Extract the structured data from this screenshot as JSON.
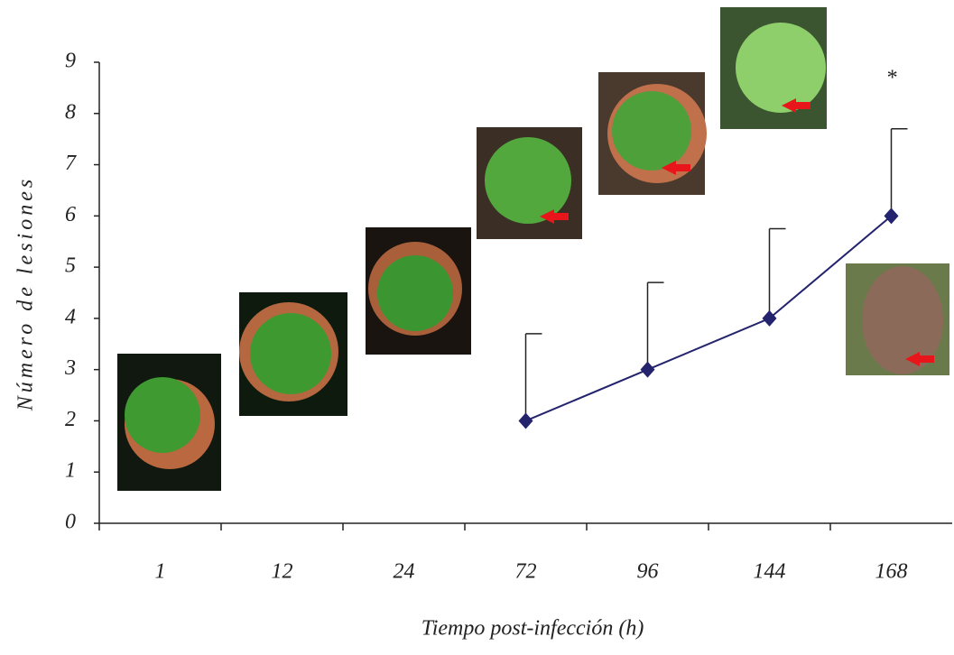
{
  "chart_data": {
    "type": "line",
    "x_label": "Tiempo post-infección (h)",
    "y_label": "Número de lesiones",
    "categories": [
      "1",
      "12",
      "24",
      "72",
      "96",
      "144",
      "168"
    ],
    "series": [
      {
        "color": "#23236e",
        "values": [
          null,
          null,
          null,
          2,
          3,
          4,
          6
        ],
        "errors": [
          null,
          null,
          null,
          1.7,
          1.7,
          1.75,
          1.7
        ]
      }
    ],
    "annotation": "*",
    "ylim": [
      0,
      9
    ],
    "yticks": [
      0,
      1,
      2,
      3,
      4,
      5,
      6,
      7,
      8,
      9
    ]
  }
}
